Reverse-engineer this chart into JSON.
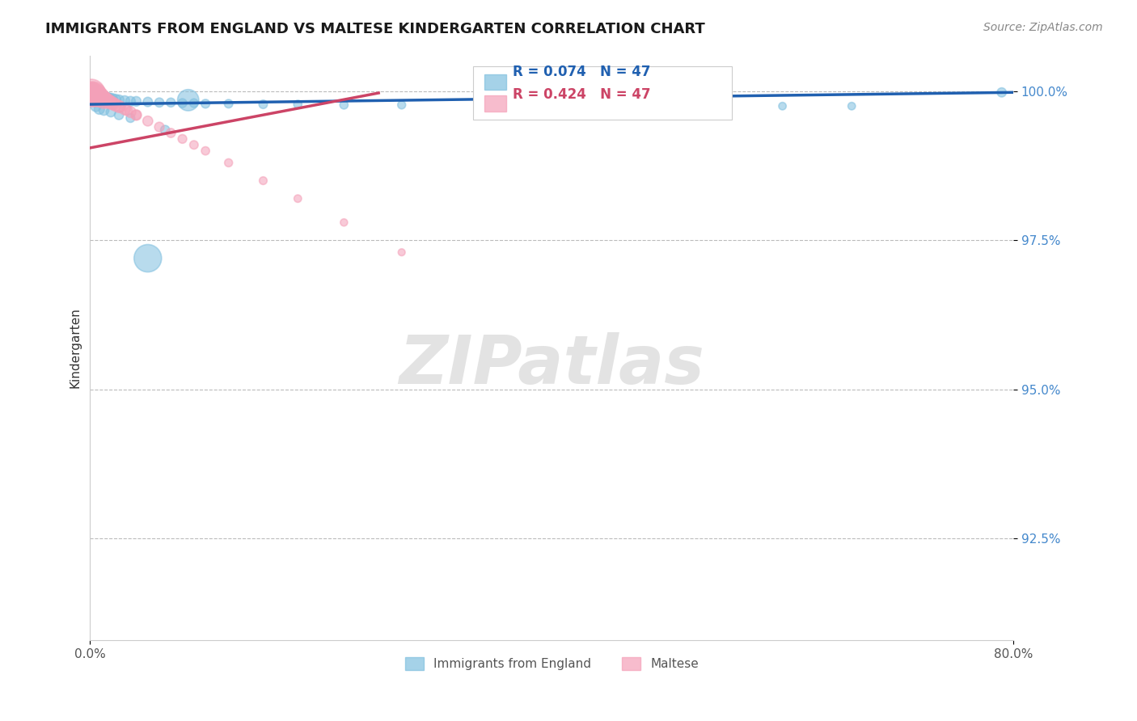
{
  "title": "IMMIGRANTS FROM ENGLAND VS MALTESE KINDERGARTEN CORRELATION CHART",
  "source": "Source: ZipAtlas.com",
  "ylabel": "Kindergarten",
  "ytick_labels": [
    "100.0%",
    "97.5%",
    "95.0%",
    "92.5%"
  ],
  "ytick_values": [
    1.0,
    0.975,
    0.95,
    0.925
  ],
  "xlim": [
    0.0,
    0.8
  ],
  "ylim": [
    0.908,
    1.006
  ],
  "legend_r1_text": "R = 0.074   N = 47",
  "legend_r2_text": "R = 0.424   N = 47",
  "legend_label1": "Immigrants from England",
  "legend_label2": "Maltese",
  "color_blue": "#7fbfdf",
  "color_pink": "#f4a0b8",
  "trendline_blue": "#2060b0",
  "trendline_pink": "#cc4466",
  "watermark": "ZIPatlas",
  "blue_trend_x": [
    0.0,
    0.8
  ],
  "blue_trend_y": [
    0.9978,
    0.9998
  ],
  "pink_trend_x": [
    0.0,
    0.25
  ],
  "pink_trend_y": [
    0.9905,
    0.9997
  ],
  "blue_x": [
    0.001,
    0.002,
    0.003,
    0.004,
    0.005,
    0.006,
    0.007,
    0.008,
    0.009,
    0.01,
    0.011,
    0.012,
    0.013,
    0.015,
    0.017,
    0.019,
    0.022,
    0.025,
    0.03,
    0.035,
    0.04,
    0.05,
    0.06,
    0.07,
    0.08,
    0.09,
    0.1,
    0.12,
    0.15,
    0.18,
    0.22,
    0.27,
    0.35,
    0.43,
    0.5,
    0.6,
    0.66,
    0.005,
    0.008,
    0.012,
    0.018,
    0.025,
    0.035,
    0.05,
    0.065,
    0.085,
    0.79
  ],
  "blue_y": [
    0.9998,
    0.9996,
    0.9995,
    0.9994,
    0.9993,
    0.9993,
    0.9992,
    0.9992,
    0.9991,
    0.999,
    0.999,
    0.9989,
    0.9989,
    0.9988,
    0.9987,
    0.9987,
    0.9986,
    0.9985,
    0.9984,
    0.9983,
    0.9983,
    0.9982,
    0.9981,
    0.9981,
    0.998,
    0.998,
    0.9979,
    0.9979,
    0.9978,
    0.9978,
    0.9977,
    0.9977,
    0.9976,
    0.9976,
    0.9975,
    0.9975,
    0.9975,
    0.9975,
    0.997,
    0.9968,
    0.9965,
    0.996,
    0.9955,
    0.972,
    0.9935,
    0.9985,
    0.9998
  ],
  "blue_sizes": [
    80,
    70,
    65,
    60,
    55,
    52,
    50,
    48,
    46,
    44,
    42,
    40,
    38,
    35,
    33,
    31,
    29,
    28,
    26,
    25,
    24,
    23,
    22,
    21,
    21,
    20,
    20,
    19,
    19,
    18,
    18,
    17,
    17,
    16,
    16,
    15,
    15,
    30,
    28,
    26,
    24,
    22,
    20,
    200,
    22,
    120,
    22
  ],
  "pink_x": [
    0.001,
    0.002,
    0.003,
    0.004,
    0.005,
    0.006,
    0.007,
    0.008,
    0.009,
    0.01,
    0.011,
    0.012,
    0.013,
    0.015,
    0.017,
    0.019,
    0.022,
    0.025,
    0.03,
    0.035,
    0.04,
    0.05,
    0.06,
    0.07,
    0.08,
    0.09,
    0.1,
    0.12,
    0.15,
    0.18,
    0.22,
    0.27,
    0.002,
    0.004,
    0.006,
    0.008,
    0.012,
    0.016,
    0.02,
    0.026,
    0.032,
    0.04,
    0.001,
    0.003,
    0.005,
    0.008,
    0.012
  ],
  "pink_y": [
    0.9998,
    0.9997,
    0.9996,
    0.9995,
    0.9994,
    0.9993,
    0.9992,
    0.9991,
    0.999,
    0.9989,
    0.9988,
    0.9987,
    0.9986,
    0.9984,
    0.9982,
    0.998,
    0.9977,
    0.9974,
    0.997,
    0.9965,
    0.996,
    0.995,
    0.994,
    0.993,
    0.992,
    0.991,
    0.99,
    0.988,
    0.985,
    0.982,
    0.978,
    0.973,
    0.9996,
    0.9994,
    0.9992,
    0.999,
    0.9987,
    0.9983,
    0.9979,
    0.9974,
    0.9968,
    0.996,
    0.9997,
    0.9995,
    0.9993,
    0.999,
    0.9985
  ],
  "pink_sizes": [
    120,
    110,
    100,
    95,
    90,
    85,
    80,
    75,
    70,
    65,
    62,
    58,
    55,
    50,
    46,
    43,
    40,
    37,
    34,
    31,
    29,
    26,
    24,
    22,
    20,
    19,
    18,
    17,
    16,
    15,
    14,
    13,
    80,
    70,
    62,
    55,
    48,
    42,
    37,
    32,
    28,
    24,
    200,
    160,
    130,
    100,
    75
  ]
}
